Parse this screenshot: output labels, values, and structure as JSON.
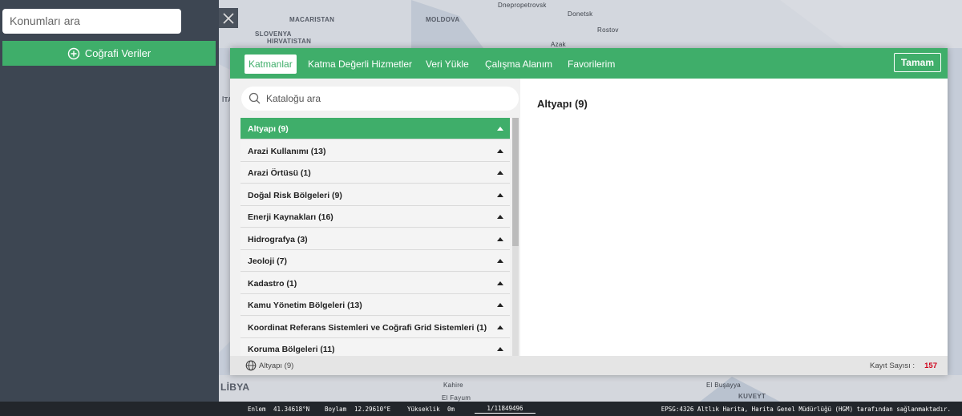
{
  "sidebar": {
    "search_placeholder": "Konumları ara",
    "button": "Coğrafi Veriler"
  },
  "map": {
    "labels": [
      "Dnepropetrovsk",
      "Donetsk",
      "Rostov",
      "MACARISTAN",
      "MOLDOVA",
      "SLOVENYA",
      "HIRVATISTAN",
      "Azak",
      "LİBYA",
      "Kahire",
      "El Fayum",
      "El Buşayya",
      "KUVEYT",
      "İTA"
    ]
  },
  "dialog": {
    "tabs": [
      "Katmanlar",
      "Katma Değerli Hizmetler",
      "Veri Yükle",
      "Çalışma Alanım",
      "Favorilerim"
    ],
    "done_button": "Tamam",
    "catalog_search_placeholder": "Kataloğu ara",
    "categories": [
      "Altyapı (9)",
      "Arazi Kullanımı (13)",
      "Arazi Örtüsü (1)",
      "Doğal Risk Bölgeleri (9)",
      "Enerji Kaynakları (16)",
      "Hidrografya (3)",
      "Jeoloji (7)",
      "Kadastro (1)",
      "Kamu Yönetim Bölgeleri (13)",
      "Koordinat Referans Sistemleri ve Coğrafi Grid Sistemleri (1)",
      "Koruma Bölgeleri (11)"
    ],
    "detail_title": "Altyapı (9)",
    "footer": {
      "selected": "Altyapı (9)",
      "record_label": "Kayıt Sayısı :",
      "record_count": "157"
    }
  },
  "status_bar": {
    "lat_label": "Enlem",
    "lat": "41.34618°N",
    "lon_label": "Boylam",
    "lon": "12.29610°E",
    "elev_label": "Yükseklik",
    "elev": "0m",
    "scale": "1/11849496",
    "attribution": "EPSG:4326 Altlık Harita, Harita Genel Müdürlüğü (HGM) tarafından sağlanmaktadır."
  }
}
